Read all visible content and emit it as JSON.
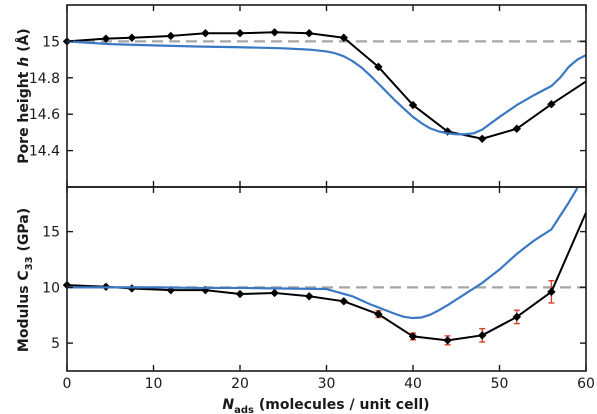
{
  "chart_data": [
    {
      "type": "line",
      "panel": "top",
      "ylabel_text": "Pore height ",
      "ylabel_var": "h",
      "ylabel_unit": " (Å)",
      "xlim": [
        0,
        60
      ],
      "ylim": [
        14.2,
        15.2
      ],
      "yticks": [
        14.4,
        14.6,
        14.8,
        15
      ],
      "ytick_labels": [
        "14.4",
        "14.6",
        "14.8",
        "15"
      ],
      "grid": false,
      "reference_line": {
        "y": 15.0,
        "style": "dashed",
        "color": "#a6a6a6"
      },
      "series": [
        {
          "color": "#000000",
          "marker": "diamond",
          "x": [
            0,
            4.5,
            7.5,
            12,
            16,
            20,
            24,
            28,
            32,
            36,
            40,
            44,
            48,
            52,
            56,
            60
          ],
          "y": [
            15.0,
            15.015,
            15.02,
            15.03,
            15.045,
            15.045,
            15.05,
            15.045,
            15.02,
            14.86,
            14.65,
            14.505,
            14.465,
            14.52,
            14.655,
            14.78
          ],
          "markers_through_x": 56
        },
        {
          "color": "#3b78c3",
          "marker": "none",
          "x": [
            0,
            5,
            10,
            15,
            20,
            25,
            28,
            30,
            31,
            32,
            33,
            34,
            35,
            36,
            37,
            38,
            39,
            40,
            41,
            42,
            43,
            44,
            45,
            46,
            47,
            48,
            49,
            50,
            52,
            54,
            56,
            57,
            58,
            59,
            60
          ],
          "y": [
            15.0,
            14.985,
            14.978,
            14.972,
            14.968,
            14.962,
            14.955,
            14.945,
            14.935,
            14.918,
            14.892,
            14.858,
            14.815,
            14.768,
            14.72,
            14.672,
            14.628,
            14.585,
            14.55,
            14.522,
            14.505,
            14.495,
            14.49,
            14.49,
            14.495,
            14.515,
            14.55,
            14.585,
            14.65,
            14.705,
            14.755,
            14.8,
            14.86,
            14.9,
            14.925
          ]
        }
      ]
    },
    {
      "type": "line",
      "panel": "bottom",
      "ylabel_text": "Modulus  C",
      "ylabel_sub": "33",
      "ylabel_unit": " (GPa)",
      "xlabel_var": "N",
      "xlabel_sub": "ads",
      "xlabel_text": " (molecules / unit cell)",
      "xlim": [
        0,
        60
      ],
      "ylim": [
        2.5,
        19
      ],
      "xticks": [
        0,
        10,
        20,
        30,
        40,
        50,
        60
      ],
      "xtick_labels": [
        "0",
        "10",
        "20",
        "30",
        "40",
        "50",
        "60"
      ],
      "yticks": [
        5,
        10,
        15
      ],
      "ytick_labels": [
        "5",
        "10",
        "15"
      ],
      "grid": false,
      "reference_line": {
        "y": 10.0,
        "style": "dashed",
        "color": "#a6a6a6"
      },
      "series": [
        {
          "color": "#000000",
          "marker": "diamond",
          "errorbar_color": "#d6402a",
          "x": [
            0,
            4.5,
            7.5,
            12,
            16,
            20,
            24,
            28,
            32,
            36,
            40,
            44,
            48,
            52,
            56,
            60
          ],
          "y": [
            10.2,
            10.05,
            9.9,
            9.75,
            9.75,
            9.4,
            9.5,
            9.2,
            8.75,
            7.6,
            5.6,
            5.25,
            5.7,
            7.35,
            9.6,
            16.7
          ],
          "yerr": [
            0,
            0,
            0,
            0,
            0,
            0,
            0,
            0,
            0,
            0.3,
            0.3,
            0.4,
            0.6,
            0.6,
            1.0,
            0
          ],
          "markers_through_x": 56
        },
        {
          "color": "#3b78c3",
          "marker": "none",
          "x": [
            0,
            5,
            10,
            15,
            20,
            25,
            30,
            33,
            35,
            37,
            38,
            39,
            40,
            41,
            42,
            43,
            44,
            45,
            46,
            48,
            50,
            52,
            54,
            56,
            57,
            58,
            59
          ],
          "y": [
            10.0,
            10.0,
            10.0,
            9.95,
            9.95,
            9.9,
            9.85,
            9.2,
            8.5,
            7.9,
            7.6,
            7.35,
            7.25,
            7.3,
            7.55,
            7.95,
            8.4,
            8.9,
            9.4,
            10.4,
            11.6,
            13.0,
            14.2,
            15.2,
            16.4,
            17.6,
            18.9
          ]
        }
      ]
    }
  ]
}
